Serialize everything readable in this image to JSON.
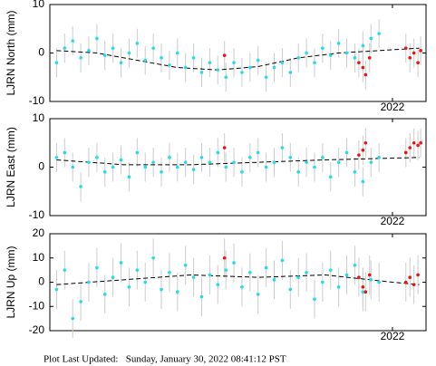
{
  "chart_data": [
    {
      "type": "scatter",
      "ylabel": "LJRN North (mm)",
      "xlim": [
        2019.45,
        2022.25
      ],
      "xticks": [
        2022
      ],
      "ylim": [
        -10,
        10
      ],
      "yticks": [
        -10,
        0,
        10
      ],
      "series": [
        {
          "color": "#22dde8",
          "error": 3,
          "x": [
            2019.5,
            2019.56,
            2019.62,
            2019.68,
            2019.74,
            2019.8,
            2019.86,
            2019.92,
            2019.98,
            2020.04,
            2020.1,
            2020.16,
            2020.22,
            2020.28,
            2020.34,
            2020.4,
            2020.46,
            2020.52,
            2020.58,
            2020.64,
            2020.7,
            2020.76,
            2020.82,
            2020.88,
            2020.94,
            2021.0,
            2021.06,
            2021.12,
            2021.18,
            2021.24,
            2021.3,
            2021.36,
            2021.42,
            2021.48,
            2021.54,
            2021.6,
            2021.66,
            2021.72,
            2021.78,
            2021.84,
            2021.9
          ],
          "values": [
            -2,
            1,
            2.5,
            -1,
            0.5,
            3,
            -0.5,
            1,
            -2,
            0,
            2,
            -1.5,
            1,
            -1,
            -2.5,
            0,
            -3,
            -1,
            -4,
            -2,
            -3.5,
            -5,
            -2,
            -4,
            -3,
            -1.5,
            -5,
            -3,
            -2,
            -4,
            -1,
            0,
            -2,
            1,
            -0.5,
            2,
            0,
            -1,
            1.5,
            3,
            4
          ]
        },
        {
          "color": "#ee1111",
          "error": 3,
          "x": [
            2020.75,
            2021.75,
            2021.78,
            2021.8,
            2021.83,
            2022.1,
            2022.13,
            2022.16,
            2022.19,
            2022.21
          ],
          "values": [
            -0.5,
            -2,
            -3,
            -4.5,
            -1,
            1,
            -1,
            0,
            -2,
            0.5
          ]
        }
      ],
      "trend": {
        "color": "#000000",
        "x": [
          2019.5,
          2019.8,
          2020.1,
          2020.4,
          2020.7,
          2021.0,
          2021.3,
          2021.6,
          2021.9,
          2022.2
        ],
        "values": [
          0.5,
          0,
          -1.5,
          -3,
          -3.5,
          -2.8,
          -1,
          0,
          0.5,
          1
        ]
      }
    },
    {
      "type": "scatter",
      "ylabel": "LJRN East (mm)",
      "xlim": [
        2019.45,
        2022.25
      ],
      "xticks": [
        2022
      ],
      "ylim": [
        -10,
        10
      ],
      "yticks": [
        -10,
        0,
        10
      ],
      "series": [
        {
          "color": "#22dde8",
          "error": 3,
          "x": [
            2019.5,
            2019.56,
            2019.62,
            2019.68,
            2019.74,
            2019.8,
            2019.86,
            2019.92,
            2019.98,
            2020.04,
            2020.1,
            2020.16,
            2020.22,
            2020.28,
            2020.34,
            2020.4,
            2020.46,
            2020.52,
            2020.58,
            2020.64,
            2020.7,
            2020.76,
            2020.82,
            2020.88,
            2020.94,
            2021.0,
            2021.06,
            2021.12,
            2021.18,
            2021.24,
            2021.3,
            2021.36,
            2021.42,
            2021.48,
            2021.54,
            2021.6,
            2021.66,
            2021.72,
            2021.78,
            2021.84,
            2021.9
          ],
          "values": [
            2,
            3,
            0,
            -4,
            1,
            2,
            -1,
            0,
            1.5,
            -2,
            3,
            0,
            1,
            -1,
            2,
            0,
            1,
            -0.5,
            2,
            1,
            3,
            0,
            1,
            -1,
            2,
            3,
            0,
            1,
            4,
            2,
            -1,
            1,
            0,
            2,
            -2,
            1,
            3,
            -1,
            -3,
            1,
            2
          ]
        },
        {
          "color": "#ee1111",
          "error": 3,
          "x": [
            2020.75,
            2021.75,
            2021.78,
            2021.8,
            2022.1,
            2022.13,
            2022.16,
            2022.19,
            2022.21
          ],
          "values": [
            4,
            2.5,
            3.5,
            5,
            3,
            4,
            5,
            4.5,
            5
          ]
        }
      ],
      "trend": {
        "color": "#000000",
        "x": [
          2019.5,
          2020.0,
          2020.5,
          2021.0,
          2021.5,
          2022.2
        ],
        "values": [
          1.5,
          0.5,
          0.5,
          1,
          1.5,
          2
        ]
      }
    },
    {
      "type": "scatter",
      "ylabel": "LJRN Up (mm)",
      "xlim": [
        2019.45,
        2022.25
      ],
      "xticks": [
        2022
      ],
      "ylim": [
        -20,
        20
      ],
      "yticks": [
        -20,
        -10,
        0,
        10,
        20
      ],
      "series": [
        {
          "color": "#22dde8",
          "error": 8,
          "x": [
            2019.5,
            2019.56,
            2019.62,
            2019.68,
            2019.74,
            2019.8,
            2019.86,
            2019.92,
            2019.98,
            2020.04,
            2020.1,
            2020.16,
            2020.22,
            2020.28,
            2020.34,
            2020.4,
            2020.46,
            2020.52,
            2020.58,
            2020.64,
            2020.7,
            2020.76,
            2020.82,
            2020.88,
            2020.94,
            2021.0,
            2021.06,
            2021.12,
            2021.18,
            2021.24,
            2021.3,
            2021.36,
            2021.42,
            2021.48,
            2021.54,
            2021.6,
            2021.66,
            2021.72,
            2021.78,
            2021.84,
            2021.9
          ],
          "values": [
            -3,
            5,
            -15,
            -8,
            0,
            6,
            -5,
            2,
            8,
            -2,
            5,
            0,
            10,
            -3,
            4,
            -4,
            7,
            2,
            -6,
            3,
            -1,
            5,
            8,
            -2,
            4,
            -5,
            6,
            1,
            9,
            -3,
            2,
            4,
            -7,
            0,
            5,
            -2,
            3,
            7,
            -4,
            1,
            0
          ]
        },
        {
          "color": "#ee1111",
          "error": 8,
          "x": [
            2020.75,
            2021.75,
            2021.78,
            2021.8,
            2021.83,
            2022.1,
            2022.13,
            2022.16,
            2022.19
          ],
          "values": [
            10,
            2,
            -2,
            -4,
            3,
            0,
            2,
            -1,
            3
          ]
        }
      ],
      "trend": {
        "color": "#000000",
        "x": [
          2019.5,
          2020.0,
          2020.5,
          2021.0,
          2021.5,
          2022.0,
          2022.2
        ],
        "values": [
          -1,
          1,
          3,
          2,
          3,
          0,
          -1
        ]
      }
    }
  ],
  "footer": "Plot Last Updated:   Sunday, January 30, 2022 08:41:12 PST"
}
